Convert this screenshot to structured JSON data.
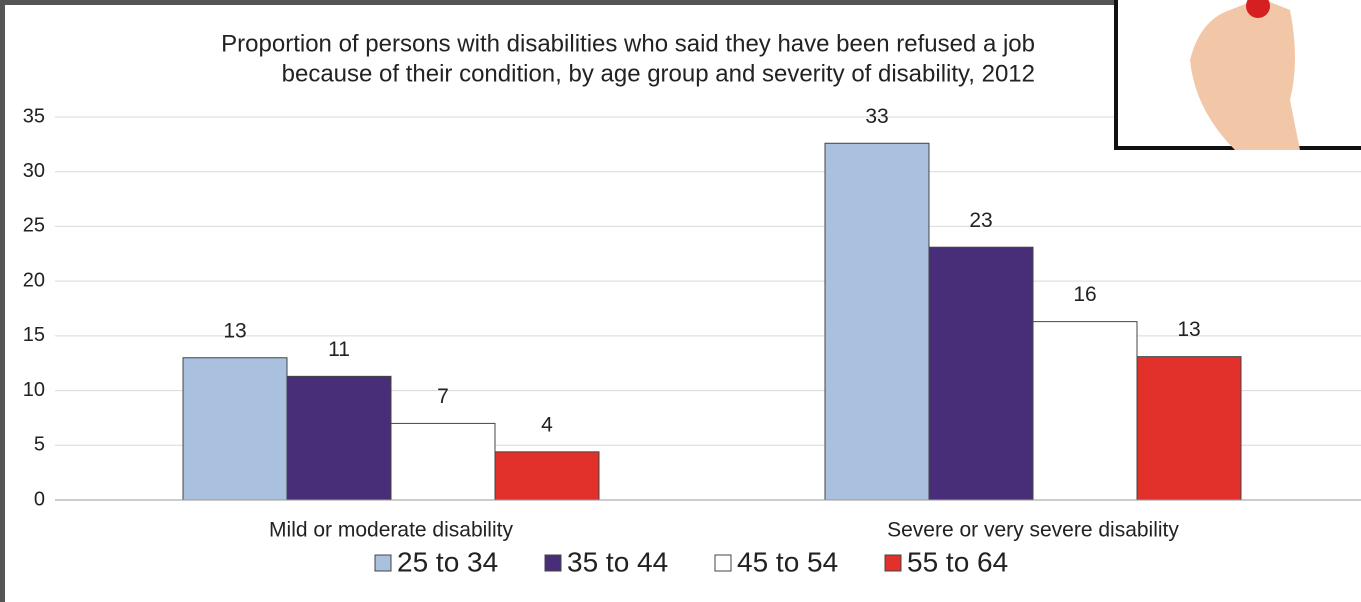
{
  "chart_data": {
    "type": "bar",
    "title": [
      "Proportion of persons with disabilities who said they have been refused a job",
      "because of their condition, by age group and severity of disability, 2012"
    ],
    "categories": [
      "Mild or moderate disability",
      "Severe or very severe disability"
    ],
    "series": [
      {
        "name": "25 to 34",
        "color": "#a9c0de",
        "values": [
          13.0,
          32.6
        ],
        "value_labels": [
          "13",
          "33"
        ]
      },
      {
        "name": "35 to 44",
        "color": "#482e78",
        "values": [
          11.3,
          23.1
        ],
        "value_labels": [
          "11",
          "23"
        ]
      },
      {
        "name": "45 to 54",
        "color": "#ffffff",
        "values": [
          7.0,
          16.3
        ],
        "value_labels": [
          "7",
          "16"
        ]
      },
      {
        "name": "55 to 64",
        "color": "#e2312b",
        "values": [
          4.4,
          13.1
        ],
        "value_labels": [
          "4",
          "13"
        ]
      }
    ],
    "ylim": [
      0,
      35
    ],
    "yticks": [
      0,
      5,
      10,
      15,
      20,
      25,
      30,
      35
    ],
    "grid": true,
    "legend": "bottom"
  }
}
